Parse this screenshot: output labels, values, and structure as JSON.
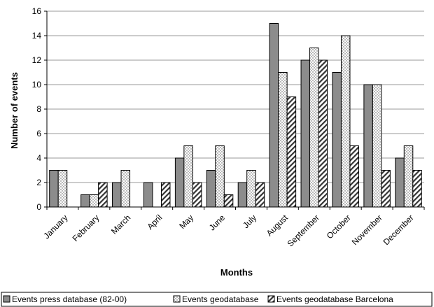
{
  "chart_data": {
    "type": "bar",
    "title": "",
    "xlabel": "Months",
    "ylabel": "Number of events",
    "ylim": [
      0,
      16
    ],
    "yticks": [
      0,
      2,
      4,
      6,
      8,
      10,
      12,
      14,
      16
    ],
    "grid": "horizontal",
    "legend_position": "bottom",
    "categories": [
      "January",
      "February",
      "March",
      "April",
      "May",
      "June",
      "July",
      "August",
      "September",
      "October",
      "November",
      "December"
    ],
    "series": [
      {
        "name": "Events press database (82-00)",
        "pattern": "solid-gray",
        "color": "#8c8c8c",
        "values": [
          3,
          1,
          2,
          2,
          4,
          3,
          2,
          15,
          12,
          11,
          10,
          4
        ]
      },
      {
        "name": "Events geodatabase",
        "pattern": "dotted",
        "color": "#ffffff",
        "values": [
          3,
          1,
          3,
          0,
          5,
          5,
          3,
          11,
          13,
          14,
          10,
          5
        ]
      },
      {
        "name": "Events geodatabase Barcelona",
        "pattern": "diagonal-hatch",
        "color": "#ffffff",
        "values": [
          0,
          2,
          0,
          2,
          2,
          1,
          2,
          9,
          12,
          5,
          3,
          3
        ]
      }
    ]
  }
}
